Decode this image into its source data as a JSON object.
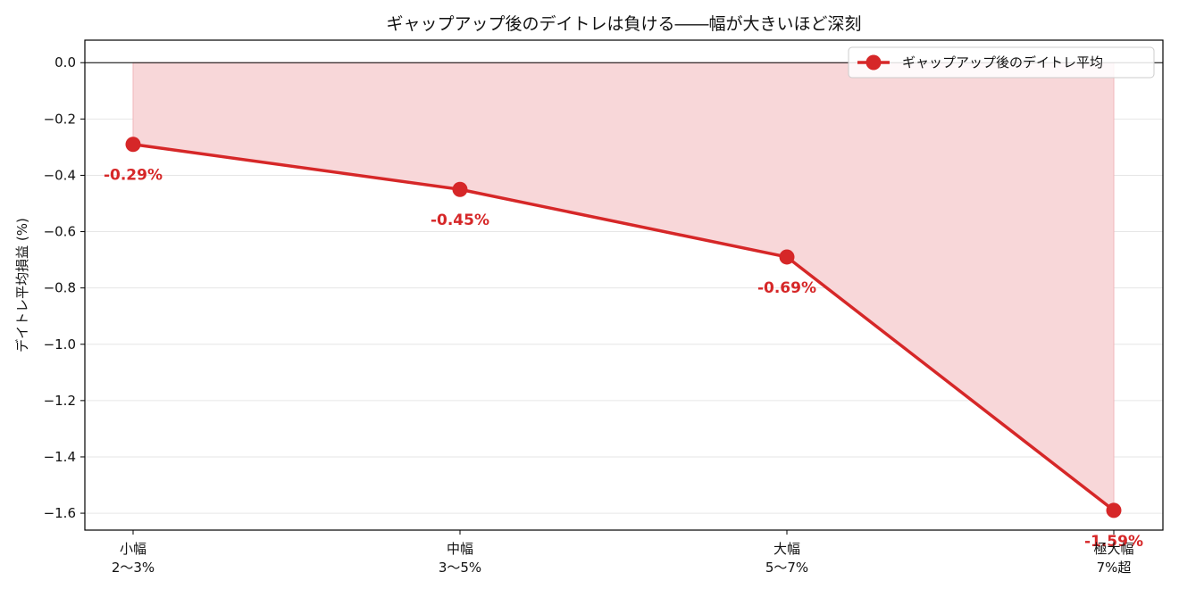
{
  "chart_data": {
    "type": "line",
    "title": "ギャップアップ後のデイトレは負ける――幅が大きいほど深刻",
    "ylabel": "デイトレ平均損益 (%)",
    "xlabel": "",
    "categories": [
      [
        "小幅",
        "2〜3%"
      ],
      [
        "中幅",
        "3〜5%"
      ],
      [
        "大幅",
        "5〜7%"
      ],
      [
        "極大幅",
        "7%超"
      ]
    ],
    "series": [
      {
        "name": "ギャップアップ後のデイトレ平均",
        "values": [
          -0.29,
          -0.45,
          -0.69,
          -1.59
        ],
        "labels": [
          "-0.29%",
          "-0.45%",
          "-0.69%",
          "-1.59%"
        ],
        "color": "#d62728"
      }
    ],
    "ylim": [
      -1.66,
      0.08
    ],
    "yticks": [
      0.0,
      -0.2,
      -0.4,
      -0.6,
      -0.8,
      -1.0,
      -1.2,
      -1.4,
      -1.6
    ],
    "ytick_labels": [
      "0.0",
      "−0.2",
      "−0.4",
      "−0.6",
      "−0.8",
      "−1.0",
      "−1.2",
      "−1.4",
      "−1.6"
    ],
    "fill_to_zero": true,
    "fill_color": "#f8d7d9",
    "zero_line": true,
    "grid": "y",
    "legend_position": "top-right"
  }
}
